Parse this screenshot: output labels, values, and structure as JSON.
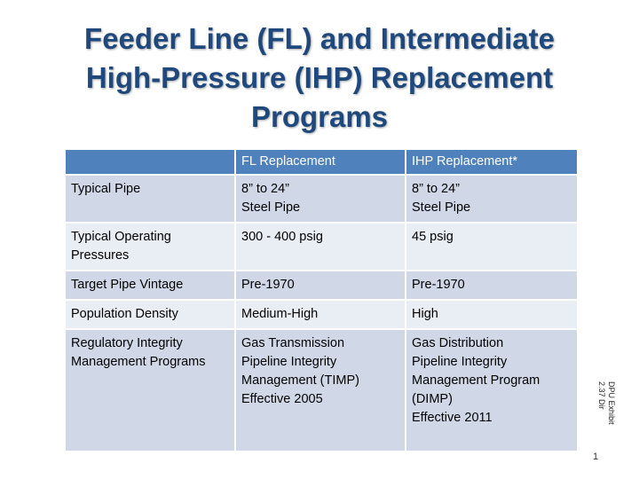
{
  "title": {
    "line1": "Feeder Line (FL) and Intermediate",
    "line2": "High-Pressure (IHP) Replacement",
    "line3": "Programs"
  },
  "table": {
    "header": [
      "",
      "FL Replacement",
      "IHP Replacement*"
    ],
    "rows": [
      {
        "label": [
          "Typical Pipe"
        ],
        "fl": [
          "8” to 24”",
          "Steel Pipe"
        ],
        "ihp": [
          "8” to 24”",
          "Steel Pipe"
        ]
      },
      {
        "label": [
          "Typical Operating",
          "Pressures"
        ],
        "fl": [
          "300 - 400 psig"
        ],
        "ihp": [
          "45 psig"
        ]
      },
      {
        "label": [
          "Target Pipe Vintage"
        ],
        "fl": [
          "Pre-1970"
        ],
        "ihp": [
          "Pre-1970"
        ]
      },
      {
        "label": [
          "Population Density"
        ],
        "fl": [
          "Medium-High"
        ],
        "ihp": [
          "High"
        ]
      },
      {
        "label": [
          "Regulatory Integrity",
          "Management Programs"
        ],
        "fl": [
          "Gas Transmission",
          "Pipeline Integrity",
          "Management (TIMP)",
          "Effective 2005"
        ],
        "ihp": [
          "Gas Distribution",
          "Pipeline Integrity",
          "Management Program",
          "(DIMP)",
          "Effective 2011"
        ]
      }
    ]
  },
  "exhibit_note": {
    "line1": "DPU Exhibit",
    "line2": "2.37 Dir"
  },
  "page_number": "1",
  "colors": {
    "title": "#1f497d",
    "header_bg": "#4f81bd",
    "row_dark": "#d0d8e8",
    "row_light": "#e9edf4"
  }
}
